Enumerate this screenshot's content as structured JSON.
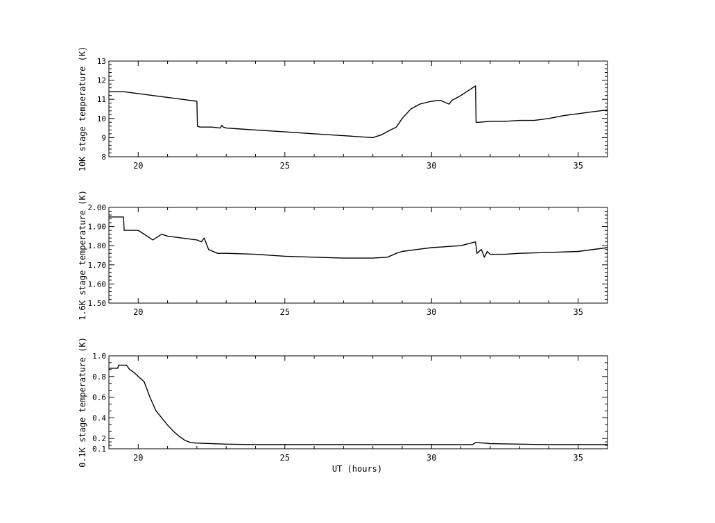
{
  "chart_data": [
    {
      "type": "line",
      "ylabel": "10K stage temperature (K)",
      "xlabel": "",
      "xlim": [
        19,
        36
      ],
      "ylim": [
        8,
        13
      ],
      "xticks": [
        "20",
        "25",
        "30",
        "35"
      ],
      "yticks": [
        "8",
        "9",
        "10",
        "11",
        "12",
        "13"
      ],
      "series": [
        {
          "x": [
            19.0,
            19.5,
            20.0,
            20.5,
            21.0,
            21.5,
            22.0,
            22.02,
            22.1,
            22.5,
            22.8,
            22.85,
            22.9,
            23.0,
            23.5,
            24.0,
            25.0,
            26.0,
            27.0,
            28.0,
            28.3,
            28.6,
            28.8,
            29.0,
            29.3,
            29.6,
            30.0,
            30.3,
            30.6,
            30.7,
            31.0,
            31.3,
            31.5,
            31.52,
            31.6,
            32.0,
            32.5,
            33.0,
            33.5,
            34.0,
            34.5,
            35.0,
            35.5,
            36.0
          ],
          "y": [
            11.4,
            11.4,
            11.3,
            11.2,
            11.1,
            11.0,
            10.9,
            9.6,
            9.55,
            9.55,
            9.5,
            9.65,
            9.55,
            9.5,
            9.45,
            9.4,
            9.3,
            9.2,
            9.1,
            9.0,
            9.15,
            9.4,
            9.55,
            10.0,
            10.5,
            10.75,
            10.9,
            10.95,
            10.75,
            10.95,
            11.2,
            11.5,
            11.7,
            9.8,
            9.8,
            9.85,
            9.85,
            9.9,
            9.9,
            10.0,
            10.15,
            10.25,
            10.35,
            10.45
          ]
        }
      ]
    },
    {
      "type": "line",
      "ylabel": "1.6K stage temperature (K)",
      "xlabel": "",
      "xlim": [
        19,
        36
      ],
      "ylim": [
        1.5,
        2.0
      ],
      "xticks": [
        "20",
        "25",
        "30",
        "35"
      ],
      "yticks": [
        "1.50",
        "1.60",
        "1.70",
        "1.80",
        "1.90",
        "2.00"
      ],
      "series": [
        {
          "x": [
            19.0,
            19.5,
            19.52,
            20.0,
            20.2,
            20.5,
            20.8,
            21.0,
            21.5,
            22.0,
            22.15,
            22.25,
            22.4,
            22.7,
            23.0,
            24.0,
            25.0,
            26.0,
            27.0,
            28.0,
            28.5,
            28.8,
            29.0,
            29.5,
            30.0,
            30.5,
            31.0,
            31.5,
            31.55,
            31.7,
            31.8,
            31.9,
            32.0,
            32.5,
            33.0,
            34.0,
            35.0,
            36.0
          ],
          "y": [
            1.95,
            1.95,
            1.88,
            1.88,
            1.86,
            1.83,
            1.86,
            1.85,
            1.84,
            1.83,
            1.82,
            1.84,
            1.78,
            1.76,
            1.76,
            1.755,
            1.745,
            1.74,
            1.735,
            1.735,
            1.74,
            1.76,
            1.77,
            1.78,
            1.79,
            1.795,
            1.8,
            1.82,
            1.76,
            1.78,
            1.74,
            1.77,
            1.755,
            1.755,
            1.76,
            1.765,
            1.77,
            1.79
          ]
        }
      ]
    },
    {
      "type": "line",
      "ylabel": "0.1K stage temperature (K)",
      "xlabel": "UT (hours)",
      "xlim": [
        19,
        36
      ],
      "ylim": [
        0.1,
        1.0
      ],
      "xticks": [
        "20",
        "25",
        "30",
        "35"
      ],
      "yticks": [
        "0.1",
        "0.2",
        "0.4",
        "0.6",
        "0.8",
        "1.0"
      ],
      "series": [
        {
          "x": [
            19.0,
            19.3,
            19.33,
            19.6,
            19.7,
            19.85,
            20.0,
            20.2,
            20.4,
            20.6,
            20.8,
            21.0,
            21.2,
            21.4,
            21.6,
            21.8,
            22.0,
            22.5,
            23.0,
            24.0,
            25.0,
            26.0,
            28.0,
            30.0,
            31.4,
            31.5,
            31.8,
            32.0,
            33.0,
            34.0,
            35.0,
            36.0
          ],
          "y": [
            0.88,
            0.88,
            0.91,
            0.91,
            0.87,
            0.84,
            0.8,
            0.75,
            0.6,
            0.47,
            0.4,
            0.33,
            0.27,
            0.22,
            0.18,
            0.16,
            0.155,
            0.15,
            0.145,
            0.14,
            0.14,
            0.14,
            0.14,
            0.14,
            0.14,
            0.16,
            0.155,
            0.15,
            0.145,
            0.14,
            0.14,
            0.14
          ]
        }
      ]
    }
  ]
}
